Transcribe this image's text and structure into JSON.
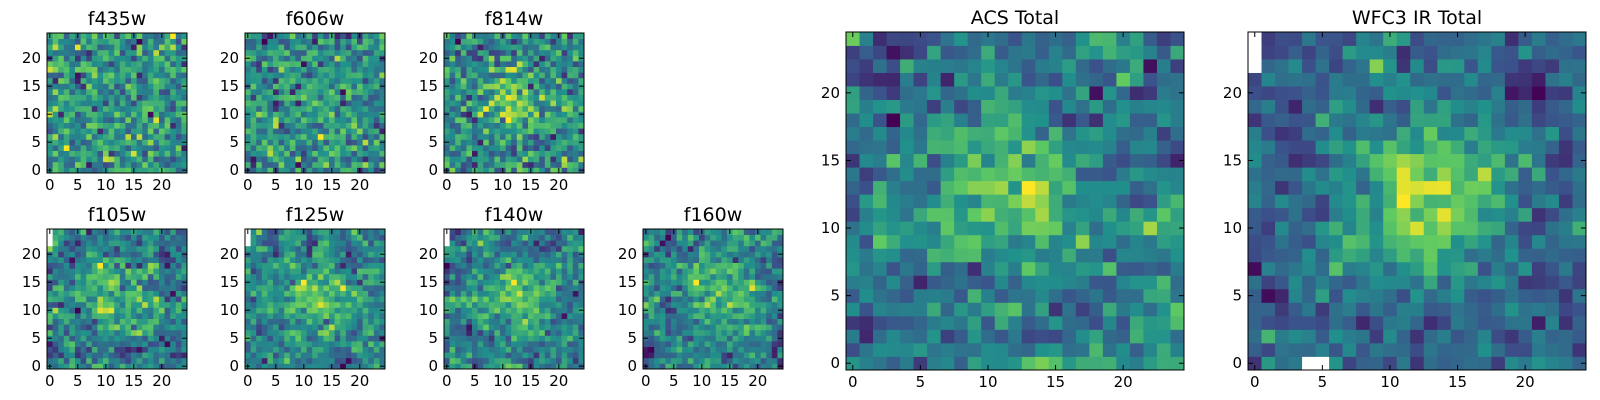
{
  "chart_data": [
    {
      "type": "heatmap",
      "title": "f435w",
      "size": 25,
      "xticks": [
        "0",
        "5",
        "10",
        "15",
        "20"
      ],
      "yticks": [
        "0",
        "5",
        "10",
        "15",
        "20"
      ],
      "xlim": [
        0,
        25
      ],
      "ylim": [
        0,
        25
      ],
      "center": 0.0,
      "noise": 1.0,
      "seed": 11,
      "masked": []
    },
    {
      "type": "heatmap",
      "title": "f606w",
      "size": 25,
      "xticks": [
        "0",
        "5",
        "10",
        "15",
        "20"
      ],
      "yticks": [
        "0",
        "5",
        "10",
        "15",
        "20"
      ],
      "xlim": [
        0,
        25
      ],
      "ylim": [
        0,
        25
      ],
      "center": 0.25,
      "noise": 1.0,
      "seed": 23,
      "masked": []
    },
    {
      "type": "heatmap",
      "title": "f814w",
      "size": 25,
      "xticks": [
        "0",
        "5",
        "10",
        "15",
        "20"
      ],
      "yticks": [
        "0",
        "5",
        "10",
        "15",
        "20"
      ],
      "xlim": [
        0,
        25
      ],
      "ylim": [
        0,
        25
      ],
      "center": 0.6,
      "noise": 0.9,
      "seed": 37,
      "masked": []
    },
    {
      "type": "heatmap",
      "title": "f105w",
      "size": 25,
      "xticks": [
        "0",
        "5",
        "10",
        "15",
        "20"
      ],
      "yticks": [
        "0",
        "5",
        "10",
        "15",
        "20"
      ],
      "xlim": [
        0,
        25
      ],
      "ylim": [
        0,
        25
      ],
      "center": 0.5,
      "noise": 0.85,
      "seed": 41,
      "masked": [
        [
          0,
          24
        ],
        [
          0,
          23
        ],
        [
          0,
          22
        ]
      ]
    },
    {
      "type": "heatmap",
      "title": "f125w",
      "size": 25,
      "xticks": [
        "0",
        "5",
        "10",
        "15",
        "20"
      ],
      "yticks": [
        "0",
        "5",
        "10",
        "15",
        "20"
      ],
      "xlim": [
        0,
        25
      ],
      "ylim": [
        0,
        25
      ],
      "center": 0.5,
      "noise": 0.85,
      "seed": 53,
      "masked": [
        [
          0,
          24
        ],
        [
          0,
          23
        ],
        [
          0,
          22
        ]
      ]
    },
    {
      "type": "heatmap",
      "title": "f140w",
      "size": 25,
      "xticks": [
        "0",
        "5",
        "10",
        "15",
        "20"
      ],
      "yticks": [
        "0",
        "5",
        "10",
        "15",
        "20"
      ],
      "xlim": [
        0,
        25
      ],
      "ylim": [
        0,
        25
      ],
      "center": 0.55,
      "noise": 0.85,
      "seed": 67,
      "masked": [
        [
          0,
          24
        ],
        [
          0,
          23
        ],
        [
          0,
          22
        ]
      ]
    },
    {
      "type": "heatmap",
      "title": "f160w",
      "size": 25,
      "xticks": [
        "0",
        "5",
        "10",
        "15",
        "20"
      ],
      "yticks": [
        "0",
        "5",
        "10",
        "15",
        "20"
      ],
      "xlim": [
        0,
        25
      ],
      "ylim": [
        0,
        25
      ],
      "center": 0.6,
      "noise": 0.85,
      "seed": 79,
      "masked": []
    },
    {
      "type": "heatmap",
      "title": "ACS Total",
      "size": 25,
      "xticks": [
        "0",
        "5",
        "10",
        "15",
        "20"
      ],
      "yticks": [
        "0",
        "5",
        "10",
        "15",
        "20"
      ],
      "xlim": [
        0,
        25
      ],
      "ylim": [
        0,
        25
      ],
      "center": 0.6,
      "noise": 0.75,
      "seed": 97,
      "masked": []
    },
    {
      "type": "heatmap",
      "title": "WFC3 IR Total",
      "size": 25,
      "xticks": [
        "0",
        "5",
        "10",
        "15",
        "20"
      ],
      "yticks": [
        "0",
        "5",
        "10",
        "15",
        "20"
      ],
      "xlim": [
        0,
        25
      ],
      "ylim": [
        0,
        25
      ],
      "center": 1.0,
      "noise": 0.6,
      "seed": 101,
      "masked": [
        [
          0,
          24
        ],
        [
          0,
          23
        ],
        [
          0,
          22
        ],
        [
          4,
          0
        ],
        [
          5,
          0
        ]
      ]
    }
  ],
  "colormap": [
    "#440154",
    "#3b528b",
    "#21918c",
    "#5ec962",
    "#fde725"
  ]
}
